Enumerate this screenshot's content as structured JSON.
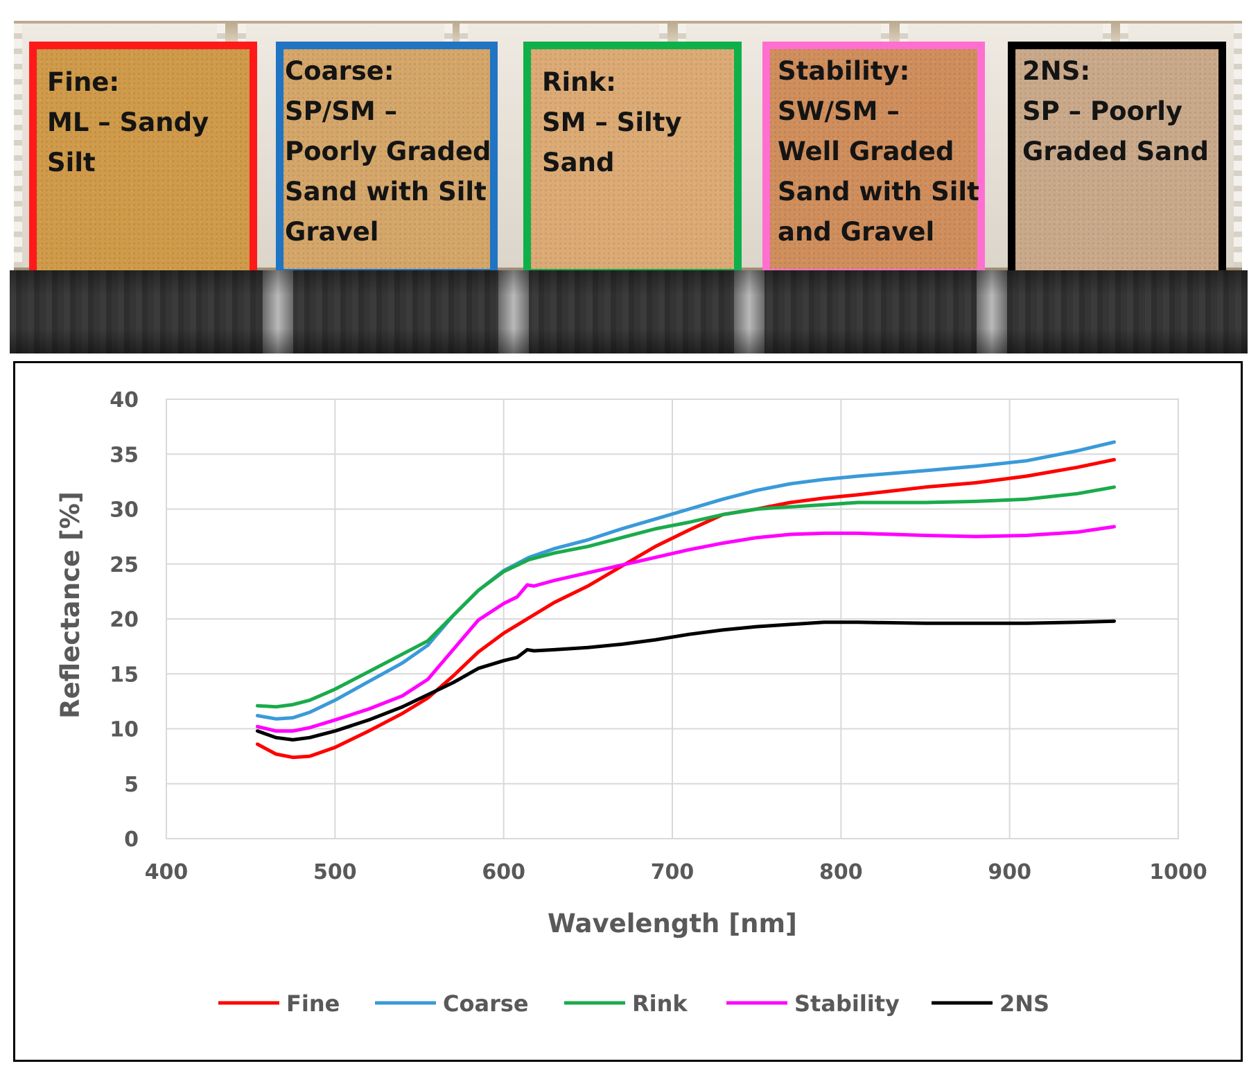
{
  "samples": [
    {
      "lines": [
        "Fine:",
        "ML – Sandy",
        "Silt"
      ],
      "frame_color": "#ff1a1a",
      "soil_color": "#cf9a49"
    },
    {
      "lines": [
        "Coarse:",
        "SP/SM –",
        "Poorly Graded",
        "Sand with Silt",
        "Gravel"
      ],
      "frame_color": "#1f74c4",
      "soil_color": "#d4a66a"
    },
    {
      "lines": [
        "Rink:",
        "SM – Silty",
        "Sand"
      ],
      "frame_color": "#0fb04a",
      "soil_color": "#dcaa74"
    },
    {
      "lines": [
        "Stability:",
        "SW/SM –",
        "Well Graded",
        "Sand with Silt",
        "and Gravel"
      ],
      "frame_color": "#ff6fcf",
      "soil_color": "#cf8e5c"
    },
    {
      "lines": [
        "2NS:",
        "SP – Poorly",
        "Graded Sand"
      ],
      "frame_color": "#000000",
      "soil_color": "#c9a98a"
    }
  ],
  "chart_data": {
    "type": "line",
    "xlabel": "Wavelength [nm]",
    "ylabel": "Reflectance [%]",
    "xlim": [
      400,
      1000
    ],
    "ylim": [
      0,
      40
    ],
    "xticks": [
      400,
      500,
      600,
      700,
      800,
      900,
      1000
    ],
    "yticks": [
      0,
      5,
      10,
      15,
      20,
      25,
      30,
      35,
      40
    ],
    "grid": true,
    "legend_position": "bottom",
    "series": [
      {
        "name": "Fine",
        "color": "#ff0000",
        "x": [
          454,
          465,
          475,
          485,
          500,
          520,
          540,
          555,
          570,
          585,
          600,
          615,
          630,
          650,
          670,
          690,
          710,
          730,
          750,
          770,
          790,
          810,
          850,
          880,
          910,
          940,
          962
        ],
        "y": [
          8.6,
          7.7,
          7.4,
          7.5,
          8.3,
          9.8,
          11.4,
          12.8,
          14.8,
          17.0,
          18.7,
          20.1,
          21.5,
          23.0,
          24.8,
          26.6,
          28.1,
          29.5,
          30.0,
          30.6,
          31.0,
          31.3,
          32.0,
          32.4,
          33.0,
          33.8,
          34.5
        ]
      },
      {
        "name": "Coarse",
        "color": "#3a9ad9",
        "x": [
          454,
          465,
          475,
          485,
          500,
          520,
          540,
          555,
          570,
          585,
          600,
          615,
          630,
          650,
          670,
          690,
          710,
          730,
          750,
          770,
          790,
          810,
          850,
          880,
          910,
          940,
          962
        ],
        "y": [
          11.2,
          10.9,
          11.0,
          11.5,
          12.6,
          14.3,
          16.0,
          17.6,
          20.3,
          22.6,
          24.4,
          25.6,
          26.4,
          27.2,
          28.2,
          29.1,
          30.0,
          30.9,
          31.7,
          32.3,
          32.7,
          33.0,
          33.5,
          33.9,
          34.4,
          35.3,
          36.1
        ]
      },
      {
        "name": "Rink",
        "color": "#1aab4b",
        "x": [
          454,
          465,
          475,
          485,
          500,
          520,
          540,
          555,
          570,
          585,
          600,
          615,
          630,
          650,
          670,
          690,
          710,
          730,
          750,
          770,
          790,
          810,
          850,
          880,
          910,
          940,
          962
        ],
        "y": [
          12.1,
          12.0,
          12.2,
          12.6,
          13.6,
          15.2,
          16.8,
          18.0,
          20.3,
          22.6,
          24.3,
          25.4,
          26.0,
          26.6,
          27.4,
          28.2,
          28.8,
          29.5,
          30.0,
          30.2,
          30.4,
          30.6,
          30.6,
          30.7,
          30.9,
          31.4,
          32.0
        ]
      },
      {
        "name": "Stability",
        "color": "#ff00ff",
        "x": [
          454,
          465,
          475,
          485,
          500,
          520,
          540,
          555,
          570,
          585,
          600,
          608,
          614,
          618,
          630,
          650,
          670,
          690,
          710,
          730,
          750,
          770,
          790,
          810,
          850,
          880,
          910,
          940,
          962
        ],
        "y": [
          10.2,
          9.8,
          9.8,
          10.1,
          10.8,
          11.8,
          13.0,
          14.5,
          17.2,
          19.9,
          21.4,
          22.0,
          23.1,
          23.0,
          23.5,
          24.2,
          24.9,
          25.6,
          26.3,
          26.9,
          27.4,
          27.7,
          27.8,
          27.8,
          27.6,
          27.5,
          27.6,
          27.9,
          28.4
        ]
      },
      {
        "name": "2NS",
        "color": "#000000",
        "x": [
          454,
          465,
          475,
          485,
          500,
          520,
          540,
          555,
          570,
          585,
          600,
          608,
          614,
          618,
          630,
          650,
          670,
          690,
          710,
          730,
          750,
          770,
          790,
          810,
          850,
          880,
          910,
          940,
          962
        ],
        "y": [
          9.8,
          9.2,
          9.0,
          9.2,
          9.8,
          10.8,
          12.0,
          13.1,
          14.2,
          15.5,
          16.2,
          16.5,
          17.2,
          17.1,
          17.2,
          17.4,
          17.7,
          18.1,
          18.6,
          19.0,
          19.3,
          19.5,
          19.7,
          19.7,
          19.6,
          19.6,
          19.6,
          19.7,
          19.8
        ]
      }
    ]
  }
}
